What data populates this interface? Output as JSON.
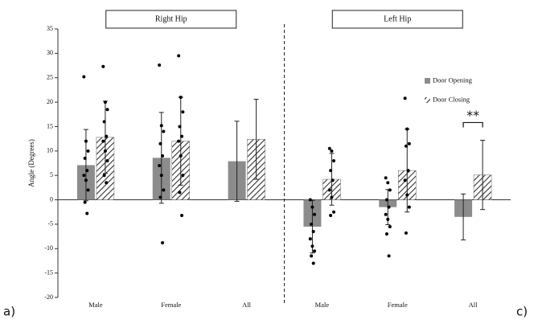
{
  "chart_data": {
    "type": "bar",
    "panel_titles": [
      "Right Hip",
      "Left Hip"
    ],
    "panel_labels": [
      "a)",
      "c)"
    ],
    "y_label": "Angle (Degrees)",
    "categories": [
      "Male",
      "Female",
      "All",
      "Male",
      "Female",
      "All"
    ],
    "ylim": [
      -20,
      35
    ],
    "yticks": [
      -20,
      -15,
      -10,
      -5,
      0,
      5,
      10,
      15,
      20,
      25,
      30,
      35
    ],
    "series": [
      {
        "name": "Door Opening",
        "color": "#8c8c8c",
        "pattern": "solid",
        "values": [
          7.1,
          8.6,
          7.9,
          -5.5,
          -1.5,
          -3.5
        ],
        "errors": [
          7.3,
          9.3,
          8.2,
          5.4,
          3.6,
          4.7
        ],
        "points": [
          [
            25.2,
            12,
            10,
            8.5,
            6,
            5,
            4,
            2,
            -0.5,
            -2.8
          ],
          [
            27.6,
            15.2,
            14,
            11.5,
            9,
            7,
            5,
            2,
            0.5,
            -8.8
          ],
          null,
          [
            0,
            -1.5,
            -3,
            -5,
            -6.5,
            -8,
            -9.5,
            -10.5,
            -11.5,
            -13
          ],
          [
            4.5,
            3.5,
            2,
            0,
            -1.5,
            -3,
            -4,
            -5.5,
            -7,
            -11.5
          ],
          null
        ]
      },
      {
        "name": "Door Closing",
        "color": "#555555",
        "pattern": "hatch",
        "values": [
          12.8,
          12,
          12.4,
          4.2,
          6,
          5.1
        ],
        "errors": [
          7.4,
          9,
          8.2,
          5.3,
          8.5,
          7.1
        ],
        "points": [
          [
            27.3,
            20,
            18.5,
            16,
            13,
            12,
            10,
            8,
            5,
            3.5
          ],
          [
            29.5,
            21,
            18,
            15,
            13,
            12,
            9,
            5,
            1.5,
            -3.2
          ],
          null,
          [
            10.5,
            10,
            8,
            6,
            4,
            2,
            0.5,
            -2.5,
            -3.2
          ],
          [
            20.8,
            14.5,
            11.5,
            11,
            6,
            4,
            1,
            -1.5,
            -6.8
          ],
          null
        ]
      }
    ],
    "annotation": "**"
  }
}
